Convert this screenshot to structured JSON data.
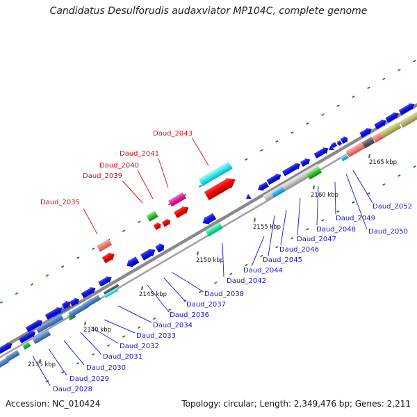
{
  "title": "Candidatus Desulforudis audaxviator MP104C, complete genome",
  "footer": {
    "accession": "Accession: NC_010424",
    "topology": "Topology: circular; Length: 2,349,476 bp; Genes: 2,211"
  },
  "colors": {
    "backbone": "#8c8c8c",
    "cds": "#1414e6",
    "tick": "#1e7a1e",
    "label_leader_blue": "#2828d0",
    "label_leader_red": "#d02020"
  },
  "ruler": [
    {
      "label": "2135 kbp"
    },
    {
      "label": "2140 kbp"
    },
    {
      "label": "2145 kbp"
    },
    {
      "label": "2150 kbp"
    },
    {
      "label": "2155 kbp"
    },
    {
      "label": "2160 kbp"
    },
    {
      "label": "2165 kbp"
    }
  ],
  "gene_labels": [
    {
      "name": "Daud_2028",
      "color": "blue"
    },
    {
      "name": "Daud_2029",
      "color": "blue"
    },
    {
      "name": "Daud_2030",
      "color": "blue"
    },
    {
      "name": "Daud_2031",
      "color": "blue"
    },
    {
      "name": "Daud_2032",
      "color": "blue"
    },
    {
      "name": "Daud_2033",
      "color": "blue"
    },
    {
      "name": "Daud_2034",
      "color": "blue"
    },
    {
      "name": "Daud_2035",
      "color": "red"
    },
    {
      "name": "Daud_2036",
      "color": "blue"
    },
    {
      "name": "Daud_2037",
      "color": "blue"
    },
    {
      "name": "Daud_2038",
      "color": "blue"
    },
    {
      "name": "Daud_2039",
      "color": "red"
    },
    {
      "name": "Daud_2040",
      "color": "red"
    },
    {
      "name": "Daud_2041",
      "color": "red"
    },
    {
      "name": "Daud_2042",
      "color": "blue"
    },
    {
      "name": "Daud_2043",
      "color": "red"
    },
    {
      "name": "Daud_2044",
      "color": "blue"
    },
    {
      "name": "Daud_2045",
      "color": "blue"
    },
    {
      "name": "Daud_2046",
      "color": "blue"
    },
    {
      "name": "Daud_2047",
      "color": "blue"
    },
    {
      "name": "Daud_2048",
      "color": "blue"
    },
    {
      "name": "Daud_2049",
      "color": "blue"
    },
    {
      "name": "Daud_2050",
      "color": "blue"
    },
    {
      "name": "Daud_2052",
      "color": "blue"
    }
  ]
}
